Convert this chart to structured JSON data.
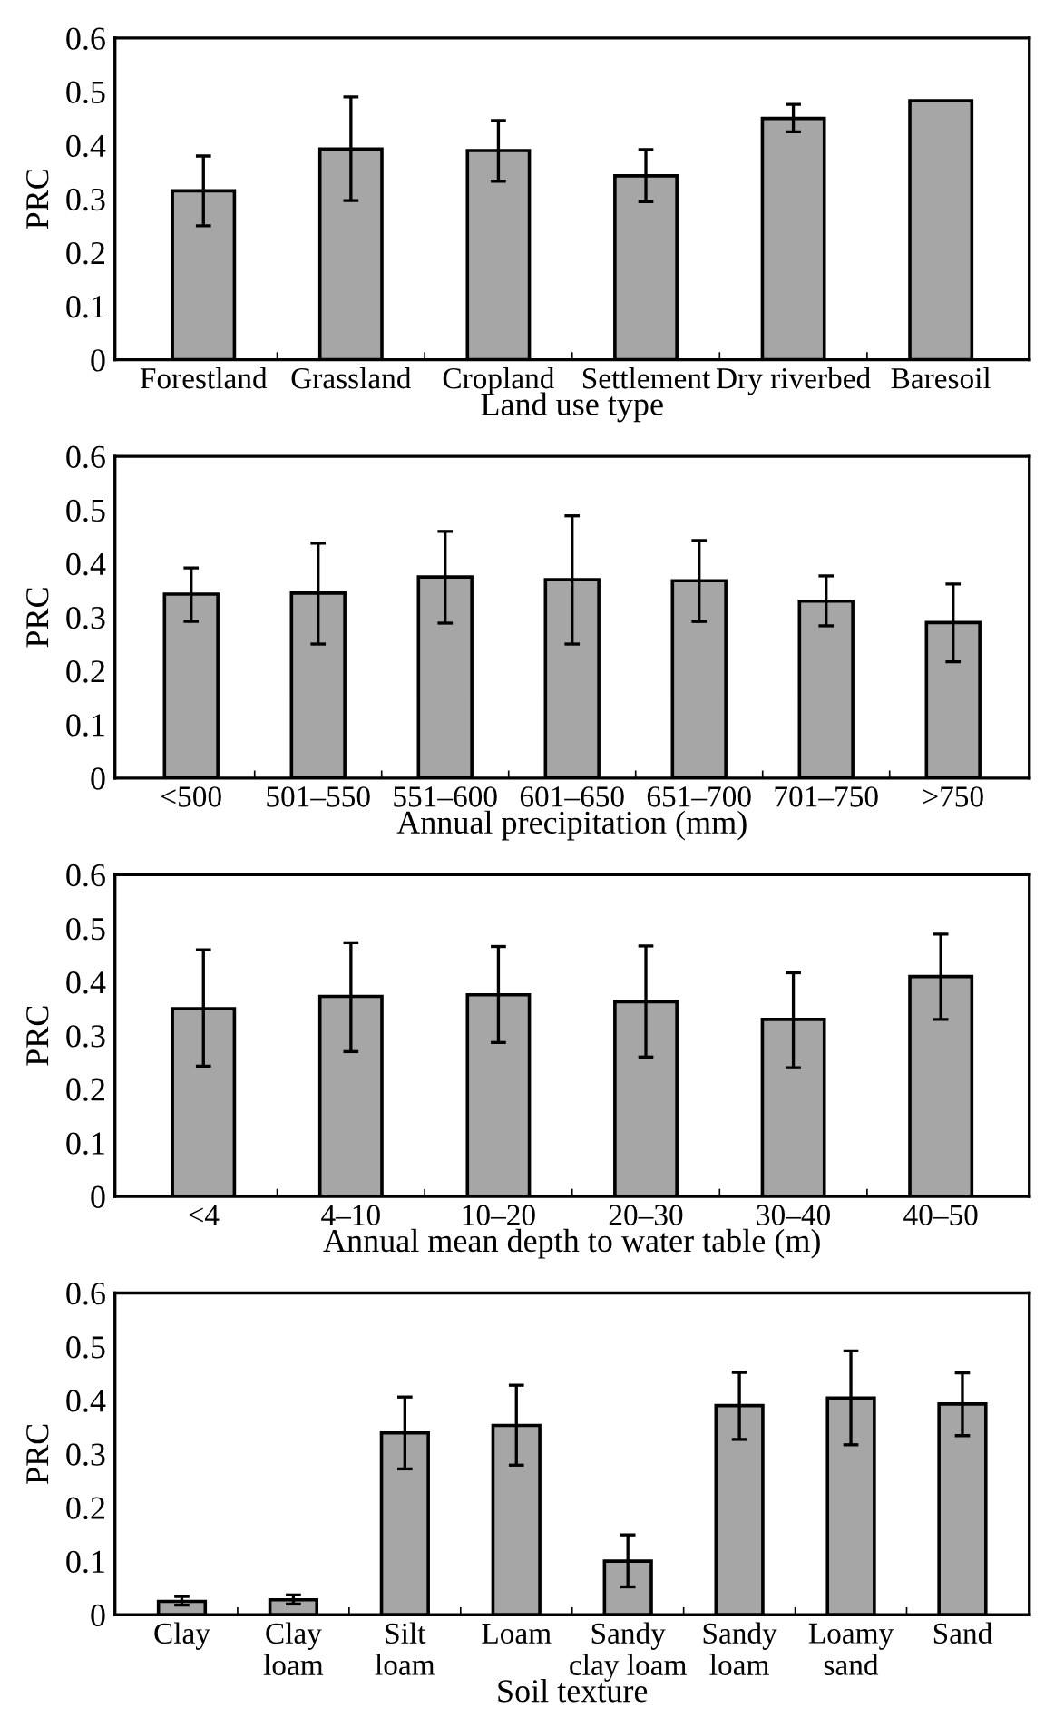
{
  "chart_data": [
    {
      "type": "bar",
      "xlabel": "Land use type",
      "ylabel": "PRC",
      "categories": [
        "Forestland",
        "Grassland",
        "Cropland",
        "Settlement",
        "Dry riverbed",
        "Baresoil"
      ],
      "series": [
        {
          "color": "#a6a6a6",
          "values": [
            0.315,
            0.393,
            0.39,
            0.343,
            0.45,
            0.483
          ],
          "errors": [
            [
              0.25,
              0.38
            ],
            [
              0.297,
              0.49
            ],
            [
              0.333,
              0.446
            ],
            [
              0.295,
              0.392
            ],
            [
              0.425,
              0.476
            ],
            null
          ]
        }
      ],
      "ylim": [
        0,
        0.6
      ],
      "yticks": [
        0,
        0.1,
        0.2,
        0.3,
        0.4,
        0.5,
        0.6
      ],
      "grid": false
    },
    {
      "type": "bar",
      "xlabel": "Annual precipitation (mm)",
      "ylabel": "PRC",
      "categories": [
        "<500",
        "501–550",
        "551–600",
        "601–650",
        "651–700",
        "701–750",
        ">750"
      ],
      "series": [
        {
          "color": "#a6a6a6",
          "values": [
            0.343,
            0.345,
            0.375,
            0.37,
            0.368,
            0.33,
            0.29
          ],
          "errors": [
            [
              0.292,
              0.392
            ],
            [
              0.25,
              0.438
            ],
            [
              0.289,
              0.46
            ],
            [
              0.25,
              0.489
            ],
            [
              0.292,
              0.443
            ],
            [
              0.284,
              0.377
            ],
            [
              0.217,
              0.362
            ]
          ]
        }
      ],
      "ylim": [
        0,
        0.6
      ],
      "yticks": [
        0,
        0.1,
        0.2,
        0.3,
        0.4,
        0.5,
        0.6
      ],
      "grid": false
    },
    {
      "type": "bar",
      "xlabel": "Annual mean depth to water table (m)",
      "ylabel": "PRC",
      "categories": [
        "<4",
        "4–10",
        "10–20",
        "20–30",
        "30–40",
        "40–50"
      ],
      "series": [
        {
          "color": "#a6a6a6",
          "values": [
            0.35,
            0.373,
            0.376,
            0.363,
            0.33,
            0.41
          ],
          "errors": [
            [
              0.243,
              0.46
            ],
            [
              0.27,
              0.473
            ],
            [
              0.287,
              0.466
            ],
            [
              0.26,
              0.467
            ],
            [
              0.24,
              0.417
            ],
            [
              0.33,
              0.489
            ]
          ]
        }
      ],
      "ylim": [
        0,
        0.6
      ],
      "yticks": [
        0,
        0.1,
        0.2,
        0.3,
        0.4,
        0.5,
        0.6
      ],
      "grid": false
    },
    {
      "type": "bar",
      "xlabel": "Soil texture",
      "ylabel": "PRC",
      "categories": [
        "Clay",
        "Clay\nloam",
        "Silt\nloam",
        "Loam",
        "Sandy\nclay loam",
        "Sandy\nloam",
        "Loamy\nsand",
        "Sand"
      ],
      "series": [
        {
          "color": "#a6a6a6",
          "values": [
            0.025,
            0.028,
            0.339,
            0.353,
            0.1,
            0.39,
            0.404,
            0.393
          ],
          "errors": [
            [
              0.018,
              0.034
            ],
            [
              0.02,
              0.037
            ],
            [
              0.272,
              0.406
            ],
            [
              0.279,
              0.428
            ],
            [
              0.052,
              0.149
            ],
            [
              0.327,
              0.452
            ],
            [
              0.317,
              0.492
            ],
            [
              0.334,
              0.451
            ]
          ]
        }
      ],
      "ylim": [
        0,
        0.6
      ],
      "yticks": [
        0,
        0.1,
        0.2,
        0.3,
        0.4,
        0.5,
        0.6
      ],
      "grid": false
    }
  ]
}
